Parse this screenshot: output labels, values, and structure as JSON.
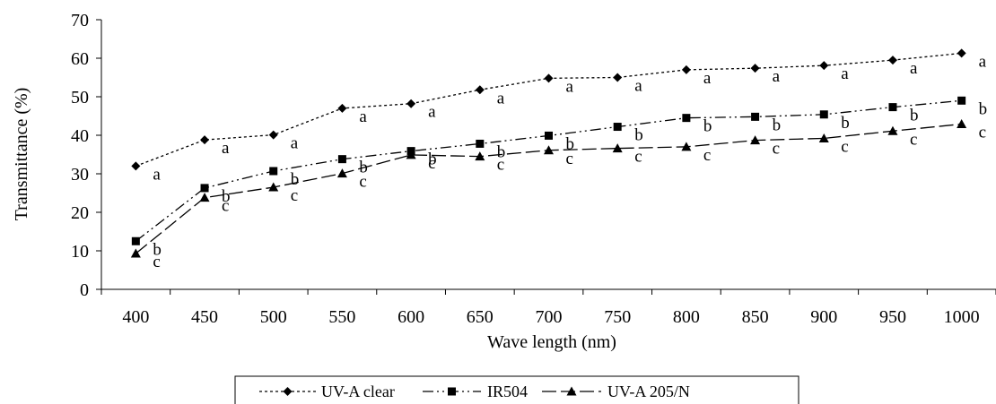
{
  "chart_data": {
    "type": "line",
    "title": "",
    "xlabel": "Wave length (nm)",
    "ylabel": "Transmittance (%)",
    "ylim": [
      0,
      70
    ],
    "yticks": [
      0,
      10,
      20,
      30,
      40,
      50,
      60,
      70
    ],
    "categories": [
      "400",
      "450",
      "500",
      "550",
      "600",
      "650",
      "700",
      "750",
      "800",
      "850",
      "900",
      "950",
      "1000"
    ],
    "grid": false,
    "legend_position": "bottom",
    "series": [
      {
        "name": "UV-A clear",
        "marker": "diamond",
        "dash": "dotted",
        "values": [
          32.0,
          38.8,
          40.1,
          47.0,
          48.2,
          51.8,
          54.8,
          55.0,
          57.0,
          57.4,
          58.1,
          59.5,
          61.3
        ],
        "letters": [
          "a",
          "a",
          "a",
          "a",
          "a",
          "a",
          "a",
          "a",
          "a",
          "a",
          "a",
          "a",
          "a"
        ]
      },
      {
        "name": "IR504",
        "marker": "square",
        "dash": "dash-dot-dot",
        "values": [
          12.5,
          26.3,
          30.7,
          33.8,
          35.9,
          37.8,
          39.9,
          42.2,
          44.5,
          44.8,
          45.4,
          47.3,
          49.0
        ],
        "letters": [
          "b",
          "b",
          "b",
          "b",
          "b",
          "b",
          "b",
          "b",
          "b",
          "b",
          "b",
          "b",
          "b"
        ]
      },
      {
        "name": "UV-A 205/N",
        "marker": "triangle",
        "dash": "long-dash",
        "values": [
          9.3,
          23.8,
          26.5,
          30.1,
          34.9,
          34.5,
          36.1,
          36.6,
          37.0,
          38.7,
          39.2,
          41.1,
          42.9
        ],
        "letters": [
          "c",
          "c",
          "c",
          "c",
          "c",
          "c",
          "c",
          "c",
          "c",
          "c",
          "c",
          "c",
          "c"
        ]
      }
    ]
  }
}
